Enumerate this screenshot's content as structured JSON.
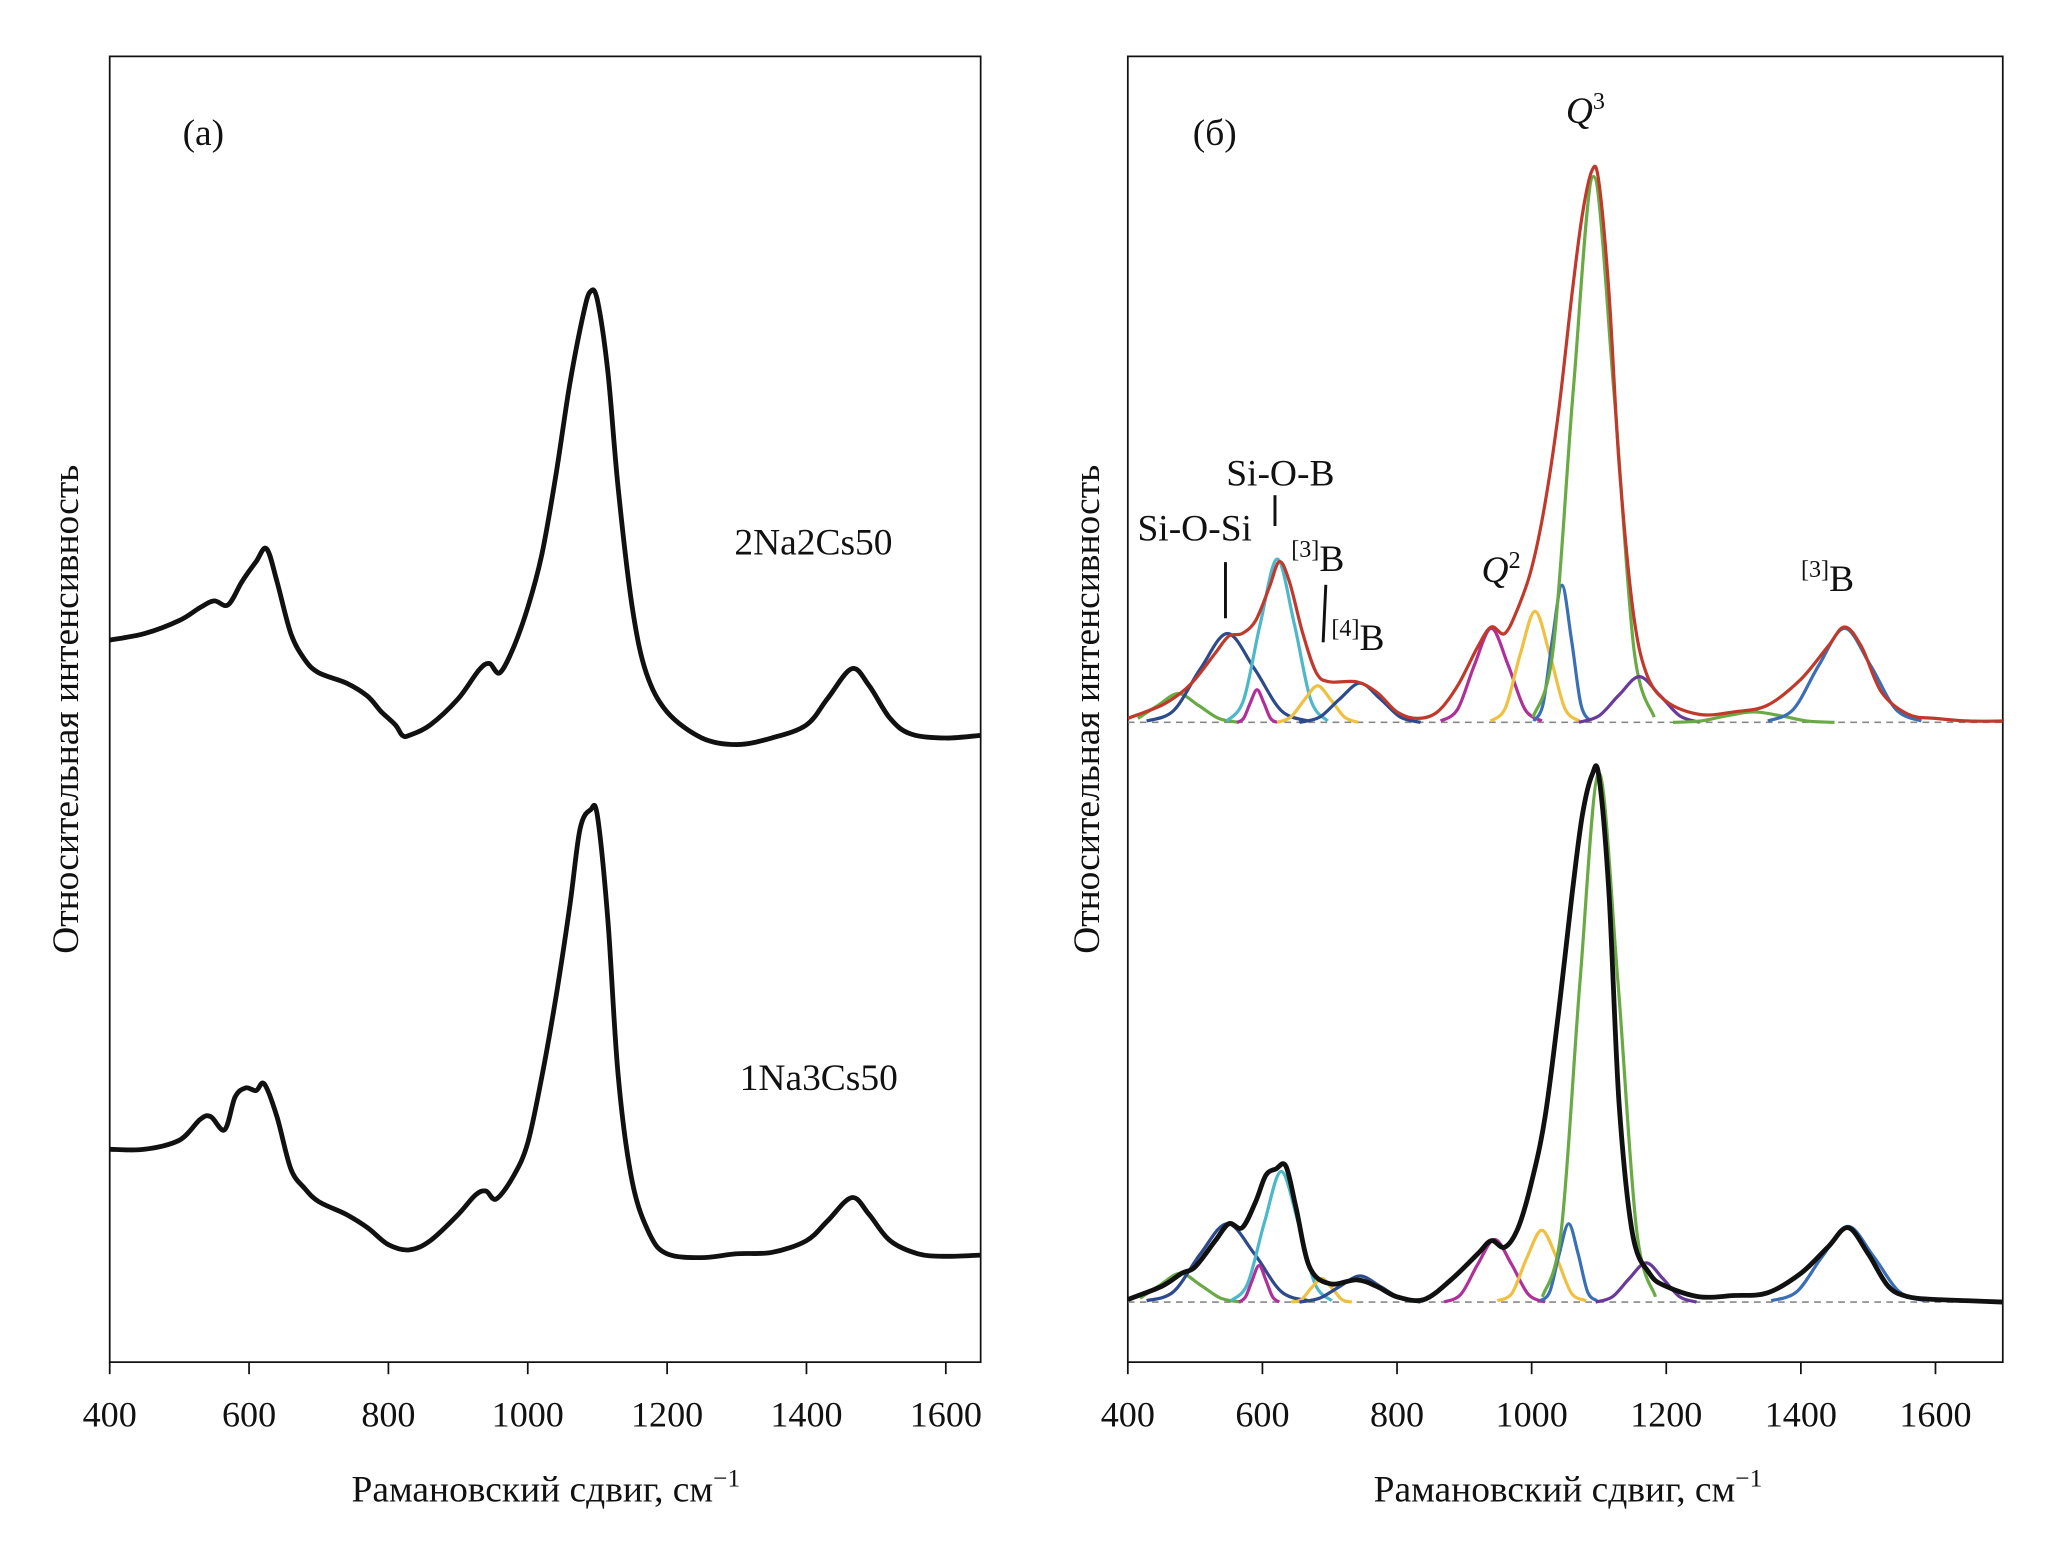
{
  "chart_data": [
    {
      "type": "line",
      "panel_label": "(a)",
      "ylabel": "Относительная интенсивность",
      "xlabel": "Рамановский сдвиг, см",
      "xlabel_sup": "−1",
      "xlim": [
        400,
        1650
      ],
      "xticks": [
        400,
        600,
        800,
        1000,
        1200,
        1400,
        1600
      ],
      "ylim": [
        0,
        1000
      ],
      "series": [
        {
          "name": "2Na2Cs50",
          "color": "#111111",
          "x": [
            400,
            450,
            500,
            530,
            550,
            570,
            590,
            610,
            625,
            640,
            660,
            680,
            700,
            740,
            770,
            790,
            810,
            820,
            830,
            860,
            900,
            930,
            945,
            960,
            980,
            1000,
            1020,
            1040,
            1060,
            1080,
            1090,
            1100,
            1115,
            1130,
            1150,
            1170,
            1200,
            1250,
            1300,
            1350,
            1400,
            1430,
            1465,
            1490,
            1520,
            1550,
            1600,
            1650
          ],
          "values": [
            553,
            558,
            568,
            578,
            583,
            580,
            598,
            613,
            623,
            598,
            558,
            538,
            528,
            520,
            510,
            498,
            488,
            480,
            480,
            488,
            508,
            530,
            535,
            528,
            548,
            578,
            618,
            678,
            748,
            803,
            820,
            813,
            758,
            668,
            578,
            528,
            498,
            478,
            473,
            478,
            488,
            508,
            531,
            518,
            493,
            481,
            478,
            480
          ]
        },
        {
          "name": "1Na3Cs50",
          "color": "#111111",
          "x": [
            400,
            450,
            500,
            530,
            545,
            565,
            580,
            595,
            610,
            622,
            640,
            660,
            680,
            700,
            740,
            770,
            800,
            830,
            860,
            900,
            925,
            940,
            955,
            980,
            1000,
            1020,
            1040,
            1060,
            1075,
            1090,
            1100,
            1115,
            1130,
            1150,
            1175,
            1200,
            1250,
            1300,
            1350,
            1400,
            1430,
            1465,
            1490,
            1520,
            1560,
            1600,
            1650
          ],
          "values": [
            163,
            163,
            170,
            186,
            188,
            178,
            203,
            210,
            208,
            213,
            188,
            148,
            133,
            123,
            113,
            103,
            90,
            86,
            93,
            113,
            128,
            131,
            125,
            143,
            168,
            218,
            278,
            348,
            408,
            423,
            418,
            338,
            218,
            138,
            98,
            83,
            80,
            83,
            84,
            93,
            108,
            126,
            113,
            93,
            83,
            81,
            82
          ]
        }
      ]
    },
    {
      "type": "line",
      "panel_label": "(б)",
      "ylabel": "Относительная интенсивность",
      "xlabel": "Рамановский сдвиг, см",
      "xlabel_sup": "−1",
      "xlim": [
        400,
        1700
      ],
      "xticks": [
        400,
        600,
        800,
        1000,
        1200,
        1400,
        1600
      ],
      "ylim": [
        0,
        1000
      ],
      "reference_lines": [
        490,
        46
      ],
      "annotations": [
        {
          "text": "Si-O-Si"
        },
        {
          "text": "Si-O-B"
        },
        {
          "pre": "[3]",
          "text": "B"
        },
        {
          "pre": "[4]",
          "text": "B"
        },
        {
          "text": "Q",
          "post": "2"
        },
        {
          "text": "Q",
          "post": "3"
        },
        {
          "pre": "[3]",
          "text": "B"
        }
      ],
      "series": [
        {
          "color": "#6aaa45",
          "x": [
            415,
            445,
            475,
            505,
            535,
            565
          ],
          "values": [
            493,
            503,
            512,
            503,
            493,
            490
          ]
        },
        {
          "color": "#2d4a8c",
          "x": [
            428,
            468,
            508,
            548,
            588,
            628,
            668
          ],
          "values": [
            491,
            499,
            531,
            558,
            531,
            499,
            491
          ]
        },
        {
          "color": "#b0309a",
          "x": [
            562,
            572,
            582,
            592,
            602,
            612,
            622
          ],
          "values": [
            490,
            493,
            505,
            515,
            505,
            493,
            490
          ]
        },
        {
          "color": "#4cb8c9",
          "x": [
            547,
            572,
            597,
            622,
            647,
            672,
            697
          ],
          "values": [
            491,
            507,
            566,
            615,
            566,
            507,
            491
          ]
        },
        {
          "color": "#f0c040",
          "x": [
            622,
            642,
            662,
            682,
            702,
            722,
            742
          ],
          "values": [
            490,
            494,
            507,
            518,
            507,
            494,
            490
          ]
        },
        {
          "color": "#2d4a8c",
          "x": [
            655,
            685,
            715,
            745,
            775,
            805,
            835
          ],
          "values": [
            490,
            494,
            508,
            520,
            508,
            494,
            490
          ]
        },
        {
          "color": "#b0309a",
          "x": [
            865,
            890,
            915,
            940,
            965,
            990,
            1015
          ],
          "values": [
            491,
            500,
            534,
            562,
            534,
            500,
            491
          ]
        },
        {
          "color": "#f0c040",
          "x": [
            939,
            961,
            983,
            1005,
            1027,
            1049,
            1071
          ],
          "values": [
            491,
            501,
            542,
            575,
            542,
            501,
            491
          ]
        },
        {
          "color": "#3a6fb5",
          "x": [
            1003,
            1017,
            1031,
            1045,
            1059,
            1073,
            1087
          ],
          "values": [
            491,
            504,
            554,
            595,
            554,
            504,
            491
          ]
        },
        {
          "color": "#6aaa45",
          "x": [
            1002,
            1032,
            1062,
            1092,
            1122,
            1152,
            1182
          ],
          "values": [
            494,
            546,
            745,
            908,
            745,
            546,
            494
          ]
        },
        {
          "color": "#6a3a9a",
          "x": [
            1070,
            1100,
            1130,
            1160,
            1190,
            1220,
            1250
          ],
          "values": [
            490,
            495,
            511,
            525,
            511,
            495,
            490
          ]
        },
        {
          "color": "#6aaa45",
          "x": [
            1210,
            1250,
            1290,
            1330,
            1370,
            1410,
            1450
          ],
          "values": [
            490,
            491,
            495,
            498,
            495,
            491,
            490
          ]
        },
        {
          "color": "#3a6fb5",
          "x": [
            1351,
            1389,
            1427,
            1465,
            1503,
            1541,
            1579
          ],
          "values": [
            491,
            500,
            534,
            562,
            534,
            500,
            491
          ]
        },
        {
          "color": "#6aaa45",
          "x": [
            418,
            448,
            478,
            508,
            538,
            568
          ],
          "values": [
            49,
            59,
            68,
            59,
            49,
            46
          ]
        },
        {
          "color": "#2d4a8c",
          "x": [
            428,
            468,
            508,
            548,
            588,
            628,
            668
          ],
          "values": [
            47,
            54,
            83,
            106,
            83,
            54,
            47
          ]
        },
        {
          "color": "#b0309a",
          "x": [
            565,
            575,
            585,
            595,
            605,
            615,
            625
          ],
          "values": [
            46,
            50,
            63,
            74,
            63,
            50,
            46
          ]
        },
        {
          "color": "#4cb8c9",
          "x": [
            553,
            578,
            603,
            628,
            653,
            678,
            703
          ],
          "values": [
            47,
            60,
            107,
            146,
            107,
            60,
            47
          ]
        },
        {
          "color": "#f0c040",
          "x": [
            643,
            658,
            673,
            688,
            703,
            718,
            733
          ],
          "values": [
            46,
            48,
            57,
            64,
            57,
            48,
            46
          ]
        },
        {
          "color": "#2d4a8c",
          "x": [
            655,
            685,
            715,
            745,
            775,
            805,
            835
          ],
          "values": [
            46,
            49,
            58,
            66,
            58,
            49,
            46
          ]
        },
        {
          "color": "#b0309a",
          "x": [
            870,
            895,
            920,
            945,
            970,
            995,
            1020
          ],
          "values": [
            46,
            52,
            75,
            94,
            75,
            52,
            46
          ]
        },
        {
          "color": "#f0c040",
          "x": [
            949,
            971,
            993,
            1015,
            1037,
            1059,
            1081
          ],
          "values": [
            47,
            53,
            80,
            101,
            80,
            53,
            47
          ]
        },
        {
          "color": "#3a6fb5",
          "x": [
            1013,
            1027,
            1041,
            1055,
            1069,
            1083,
            1097
          ],
          "values": [
            47,
            54,
            83,
            106,
            83,
            54,
            47
          ]
        },
        {
          "color": "#6aaa45",
          "x": [
            1016,
            1044,
            1072,
            1100,
            1128,
            1156,
            1184
          ],
          "values": [
            50,
            101,
            293,
            451,
            293,
            101,
            50
          ]
        },
        {
          "color": "#6a3a9a",
          "x": [
            1095,
            1120,
            1145,
            1170,
            1195,
            1220,
            1245
          ],
          "values": [
            46,
            50,
            64,
            76,
            64,
            50,
            46
          ]
        },
        {
          "color": "#3a6fb5",
          "x": [
            1356,
            1394,
            1432,
            1470,
            1508,
            1546,
            1584
          ],
          "values": [
            47,
            54,
            81,
            104,
            81,
            54,
            47
          ]
        },
        {
          "color": "#c0392b",
          "x": [
            400,
            450,
            480,
            500,
            530,
            550,
            570,
            590,
            610,
            625,
            640,
            660,
            680,
            700,
            740,
            770,
            800,
            830,
            860,
            890,
            920,
            940,
            960,
            980,
            1000,
            1020,
            1040,
            1060,
            1075,
            1090,
            1100,
            1115,
            1130,
            1150,
            1170,
            1200,
            1250,
            1300,
            1350,
            1400,
            1440,
            1465,
            1490,
            1520,
            1560,
            1600,
            1650,
            1700
          ],
          "values": [
            493,
            503,
            513,
            523,
            543,
            556,
            558,
            568,
            593,
            613,
            598,
            558,
            528,
            521,
            521,
            513,
            498,
            493,
            498,
            518,
            548,
            563,
            558,
            578,
            608,
            658,
            728,
            818,
            878,
            913,
            903,
            818,
            688,
            578,
            528,
            506,
            496,
            498,
            503,
            523,
            548,
            563,
            548,
            513,
            496,
            493,
            491,
            491
          ]
        },
        {
          "color": "#111111",
          "x": [
            400,
            450,
            480,
            500,
            530,
            550,
            570,
            590,
            605,
            620,
            635,
            650,
            670,
            700,
            740,
            770,
            800,
            840,
            880,
            920,
            940,
            960,
            980,
            1000,
            1020,
            1040,
            1060,
            1075,
            1090,
            1100,
            1115,
            1130,
            1150,
            1175,
            1200,
            1250,
            1300,
            1350,
            1400,
            1440,
            1470,
            1500,
            1530,
            1560,
            1600,
            1650,
            1700
          ],
          "values": [
            48,
            58,
            68,
            73,
            93,
            106,
            103,
            123,
            143,
            148,
            150,
            118,
            73,
            60,
            63,
            58,
            50,
            48,
            63,
            83,
            93,
            88,
            103,
            138,
            188,
            268,
            358,
            418,
            450,
            448,
            358,
            198,
            98,
            68,
            58,
            50,
            51,
            53,
            68,
            88,
            103,
            83,
            58,
            50,
            48,
            47,
            46
          ]
        }
      ]
    }
  ]
}
